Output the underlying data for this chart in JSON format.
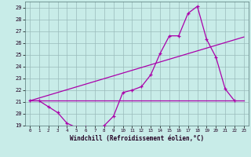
{
  "xlabel": "Windchill (Refroidissement éolien,°C)",
  "background_color": "#c8ece8",
  "grid_color": "#99bbbb",
  "line_color": "#aa00aa",
  "xlim": [
    -0.5,
    23.5
  ],
  "ylim": [
    19,
    29.5
  ],
  "yticks": [
    19,
    20,
    21,
    22,
    23,
    24,
    25,
    26,
    27,
    28,
    29
  ],
  "xticks": [
    0,
    1,
    2,
    3,
    4,
    5,
    6,
    7,
    8,
    9,
    10,
    11,
    12,
    13,
    14,
    15,
    16,
    17,
    18,
    19,
    20,
    21,
    22,
    23
  ],
  "line1_x": [
    0,
    1,
    2,
    3,
    4,
    5,
    6,
    7,
    8,
    9,
    10,
    11,
    12,
    13,
    14,
    15,
    16,
    17,
    18,
    19,
    20,
    21,
    22
  ],
  "line1_y": [
    21.1,
    21.1,
    20.6,
    20.1,
    19.2,
    18.85,
    18.85,
    18.75,
    19.0,
    19.8,
    21.8,
    22.0,
    22.3,
    23.3,
    25.1,
    26.6,
    26.6,
    28.5,
    29.1,
    26.3,
    24.8,
    22.1,
    21.1
  ],
  "line2_x": [
    0,
    23
  ],
  "line2_y": [
    21.1,
    26.5
  ],
  "line3_x": [
    0,
    23
  ],
  "line3_y": [
    21.1,
    21.1
  ],
  "xlabel_fontsize": 5.5,
  "tick_fontsize": 5.0
}
